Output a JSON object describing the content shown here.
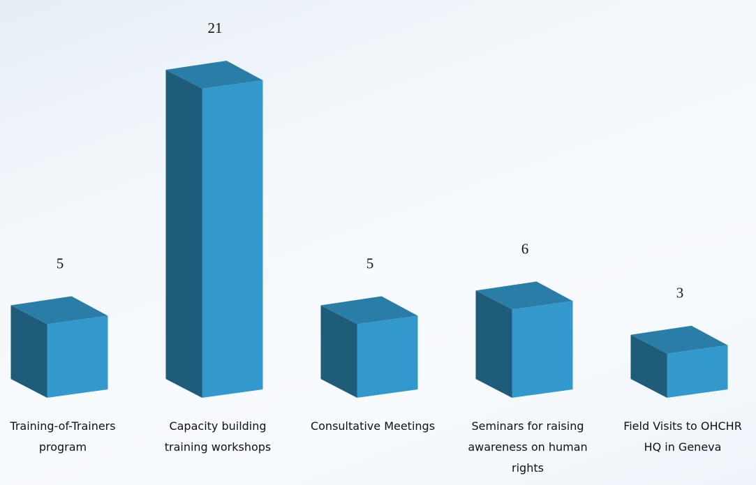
{
  "chart_data": {
    "type": "bar3d",
    "categories": [
      "Training-of-Trainers program",
      "Capacity building training workshops",
      "Consultative Meetings",
      "Seminars for raising awareness on human rights",
      "Field Visits to OHCHR HQ in Geneva"
    ],
    "values": [
      5,
      21,
      5,
      6,
      3
    ],
    "color": "#3399cc"
  }
}
